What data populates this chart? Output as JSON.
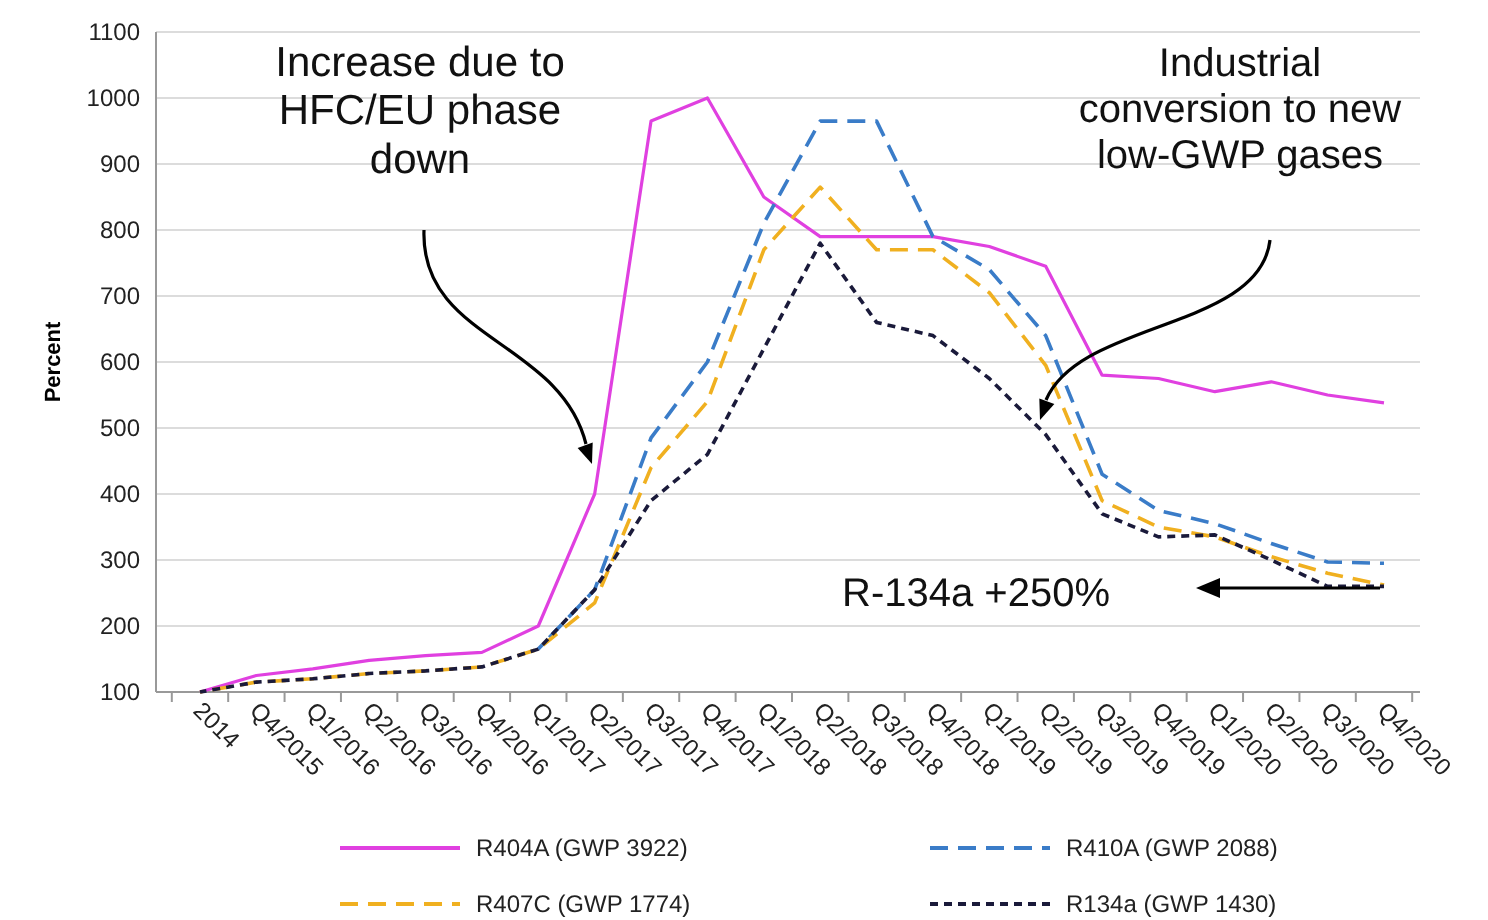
{
  "chart_data": {
    "type": "line",
    "ylabel": "Percent",
    "categories": [
      "2014",
      "Q4/2015",
      "Q1/2016",
      "Q2/2016",
      "Q3/2016",
      "Q4/2016",
      "Q1/2017",
      "Q2/2017",
      "Q3/2017",
      "Q4/2017",
      "Q1/2018",
      "Q2/2018",
      "Q3/2018",
      "Q4/2018",
      "Q1/2019",
      "Q2/2019",
      "Q3/2019",
      "Q4/2019",
      "Q1/2020",
      "Q2/2020",
      "Q3/2020",
      "Q4/2020"
    ],
    "series": [
      {
        "name": "R404A (GWP 3922)",
        "color": "#e040e0",
        "line_style": "solid",
        "values": [
          100,
          125,
          135,
          148,
          155,
          160,
          200,
          400,
          965,
          1000,
          850,
          790,
          790,
          790,
          775,
          745,
          580,
          575,
          555,
          570,
          550,
          538
        ]
      },
      {
        "name": "R410A (GWP 2088)",
        "color": "#3a7cc8",
        "line_style": "dashed",
        "values": [
          null,
          null,
          null,
          null,
          null,
          null,
          165,
          255,
          485,
          600,
          810,
          965,
          965,
          790,
          740,
          640,
          430,
          375,
          355,
          325,
          297,
          295
        ]
      },
      {
        "name": "R407C (GWP 1774)",
        "color": "#f0b020",
        "line_style": "dashed",
        "values": [
          100,
          115,
          120,
          128,
          132,
          138,
          165,
          235,
          440,
          540,
          770,
          865,
          770,
          770,
          705,
          595,
          390,
          350,
          335,
          305,
          280,
          262
        ]
      },
      {
        "name": "R134a (GWP 1430)",
        "color": "#1a1a3a",
        "line_style": "dotted",
        "values": [
          100,
          115,
          120,
          128,
          132,
          138,
          165,
          255,
          390,
          460,
          620,
          780,
          660,
          640,
          575,
          490,
          370,
          335,
          338,
          300,
          260,
          260
        ]
      }
    ],
    "ylim": [
      100,
      1100
    ],
    "yticks": [
      100,
      200,
      300,
      400,
      500,
      600,
      700,
      800,
      900,
      1000,
      1100
    ],
    "grid": "y",
    "legend": "bottom",
    "marker": "none",
    "annotations": [
      "Increase due to\nHFC/EU phase\ndown",
      "Industrial\nconversion to new\nlow-GWP gases",
      "R-134a  +250%"
    ]
  }
}
